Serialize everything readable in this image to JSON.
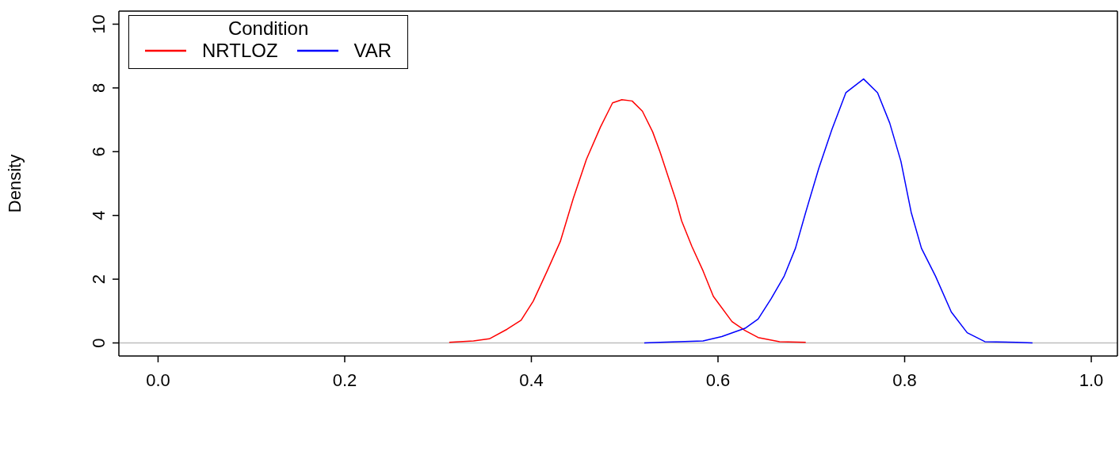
{
  "chart_data": {
    "type": "line",
    "ylabel": "Density",
    "legend_title": "Condition",
    "legend": "top left",
    "marker": "none",
    "line_style": "solid",
    "grid": false,
    "xlim": [
      -0.042,
      1.028
    ],
    "xticks": [
      {
        "value": 0,
        "label": "0.0"
      },
      0.2,
      0.4,
      0.6,
      0.8,
      {
        "value": 1,
        "label": "1.0"
      }
    ],
    "ylim": [
      -0.41,
      10.41
    ],
    "yticks": [
      0,
      2,
      4,
      6,
      8,
      10
    ],
    "ref_lines": [
      {
        "axis": "y",
        "value": 0,
        "color": "#bebebe"
      }
    ],
    "series": [
      {
        "name": "NRTLOZ",
        "color": "#ff0000",
        "x": [
          0.312,
          0.338,
          0.355,
          0.374,
          0.389,
          0.402,
          0.417,
          0.431,
          0.445,
          0.459,
          0.474,
          0.487,
          0.497,
          0.508,
          0.519,
          0.53,
          0.538,
          0.547,
          0.555,
          0.561,
          0.572,
          0.584,
          0.595,
          0.615,
          0.629,
          0.643,
          0.666,
          0.694
        ],
        "values": [
          0.02,
          0.06,
          0.13,
          0.43,
          0.71,
          1.31,
          2.26,
          3.18,
          4.54,
          5.76,
          6.77,
          7.53,
          7.63,
          7.59,
          7.27,
          6.62,
          5.98,
          5.18,
          4.47,
          3.83,
          3.03,
          2.26,
          1.46,
          0.67,
          0.39,
          0.17,
          0.04,
          0.02
        ]
      },
      {
        "name": "VAR",
        "color": "#0000ff",
        "x": [
          0.521,
          0.538,
          0.584,
          0.604,
          0.629,
          0.643,
          0.657,
          0.671,
          0.683,
          0.694,
          0.708,
          0.722,
          0.737,
          0.756,
          0.771,
          0.784,
          0.796,
          0.807,
          0.818,
          0.833,
          0.85,
          0.867,
          0.886,
          0.92,
          0.937
        ],
        "values": [
          0,
          0.02,
          0.06,
          0.2,
          0.46,
          0.75,
          1.39,
          2.1,
          2.97,
          4.1,
          5.48,
          6.69,
          7.85,
          8.28,
          7.85,
          6.9,
          5.7,
          4.1,
          2.97,
          2.1,
          0.97,
          0.32,
          0.04,
          0.02,
          0
        ]
      }
    ]
  }
}
